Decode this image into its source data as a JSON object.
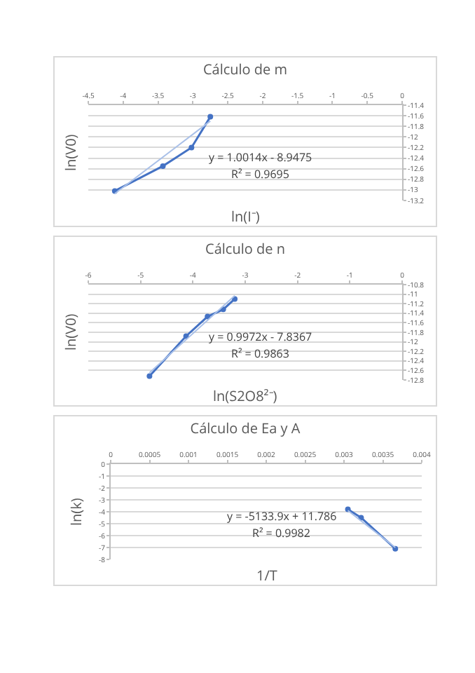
{
  "chart_data": [
    {
      "type": "line",
      "title": "Cálculo de m",
      "xlabel": "ln(I⁻)",
      "ylabel": "ln(V0)",
      "marker": "circle",
      "grid": "y",
      "xlim": [
        -4.5,
        0
      ],
      "xticks": [
        -4.5,
        -4,
        -3.5,
        -3,
        -2.5,
        -2,
        -1.5,
        -1,
        -0.5,
        0
      ],
      "ylim": [
        -13.2,
        -11.4
      ],
      "yticks": [
        -13.2,
        -13,
        -12.8,
        -12.6,
        -12.4,
        -12.2,
        -12,
        -11.8,
        -11.6,
        -11.4
      ],
      "series": [
        {
          "color": "#4472c4",
          "x": [
            -4.12,
            -3.43,
            -3.02,
            -2.75
          ],
          "values": [
            -13.02,
            -12.55,
            -12.2,
            -11.62
          ]
        },
        {
          "color": "#a9c0e8",
          "marker": "none",
          "x": [
            -4.12,
            -2.75
          ],
          "values": [
            -13.07,
            -11.7
          ]
        }
      ],
      "annotations": [
        "y = 1.0014x - 8.9475",
        "R² = 0.9695"
      ]
    },
    {
      "type": "line",
      "title": "Cálculo de n",
      "xlabel": "ln(S2O8²⁻)",
      "ylabel": "ln(V0)",
      "marker": "circle",
      "grid": "y",
      "xlim": [
        -6,
        0
      ],
      "xticks": [
        -6,
        -5,
        -4,
        -3,
        -2,
        -1,
        0
      ],
      "ylim": [
        -12.8,
        -10.8
      ],
      "yticks": [
        -12.8,
        -12.6,
        -12.4,
        -12.2,
        -12,
        -11.8,
        -11.6,
        -11.4,
        -11.2,
        -11,
        -10.8
      ],
      "series": [
        {
          "color": "#4472c4",
          "x": [
            -4.83,
            -4.13,
            -3.72,
            -3.42,
            -3.2
          ],
          "values": [
            -12.72,
            -11.88,
            -11.47,
            -11.32,
            -11.1
          ]
        },
        {
          "color": "#a9c0e8",
          "marker": "none",
          "x": [
            -4.83,
            -3.2
          ],
          "values": [
            -12.65,
            -11.03
          ]
        }
      ],
      "annotations": [
        "y = 0.9972x - 7.8367",
        "R² = 0.9863"
      ]
    },
    {
      "type": "line",
      "title": "Cálculo de Ea y A",
      "xlabel": "1/T",
      "ylabel": "ln(k)",
      "marker": "circle",
      "grid": "y",
      "xlim": [
        0,
        0.004
      ],
      "xticks": [
        0,
        0.0005,
        0.001,
        0.0015,
        0.002,
        0.0025,
        0.003,
        0.0035,
        0.004
      ],
      "ylim": [
        -8,
        0
      ],
      "yticks": [
        -8,
        -7,
        -6,
        -5,
        -4,
        -3,
        -2,
        -1,
        0
      ],
      "series": [
        {
          "color": "#4472c4",
          "x": [
            0.00305,
            0.00322,
            0.00366
          ],
          "values": [
            -3.8,
            -4.5,
            -7.1
          ]
        },
        {
          "color": "#a9c0e8",
          "marker": "none",
          "x": [
            0.00305,
            0.00366
          ],
          "values": [
            -3.9,
            -7.0
          ]
        }
      ],
      "annotations": [
        "y = -5133.9x + 11.786",
        "R² = 0.9982"
      ]
    }
  ]
}
